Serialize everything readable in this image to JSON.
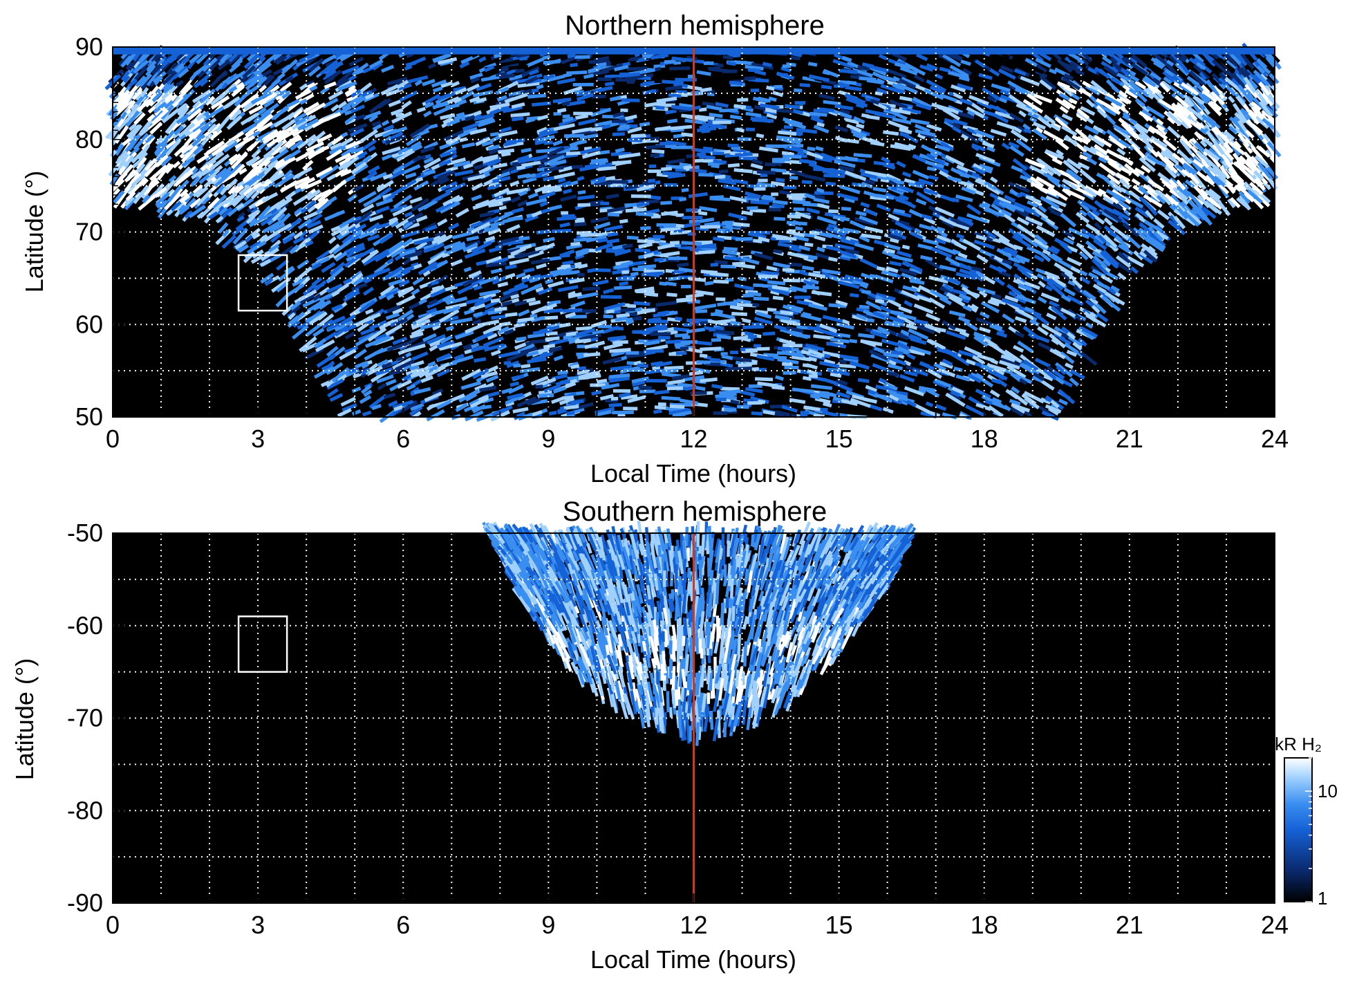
{
  "chart_data": [
    {
      "type": "heatmap",
      "title": "Northern hemisphere",
      "xlabel": "Local Time (hours)",
      "ylabel": "Latitude (°)",
      "xlim": [
        0,
        24
      ],
      "ylim": [
        50,
        90
      ],
      "xticks": [
        0,
        3,
        6,
        9,
        12,
        15,
        18,
        21,
        24
      ],
      "yticks": [
        50,
        60,
        70,
        80,
        90
      ],
      "grid": "dotted white, every 1 h local time and every 5° latitude",
      "reference_line": {
        "local_time": 12,
        "color": "#d03a1c"
      },
      "box": {
        "local_time": [
          2.6,
          3.6
        ],
        "latitude": [
          61.5,
          67.5
        ],
        "color": "#ffffff"
      },
      "coverage": {
        "description": "observed region (no data = black)",
        "lower_boundary": [
          {
            "lt": 0,
            "lat": 73.5
          },
          {
            "lt": 1.0,
            "lat": 72.5
          },
          {
            "lt": 2.0,
            "lat": 70.5
          },
          {
            "lt": 3.0,
            "lat": 66.5
          },
          {
            "lt": 4.0,
            "lat": 58
          },
          {
            "lt": 4.7,
            "lat": 50
          },
          {
            "lt": 19.5,
            "lat": 50
          },
          {
            "lt": 20.2,
            "lat": 57
          },
          {
            "lt": 21.0,
            "lat": 65
          },
          {
            "lt": 22.0,
            "lat": 70.5
          },
          {
            "lt": 23.0,
            "lat": 72.5
          },
          {
            "lt": 24,
            "lat": 73.5
          }
        ],
        "bright_ovals": [
          {
            "lt_center": 3,
            "lat_center": 77,
            "note": "bright arcs dawn side"
          },
          {
            "lt_center": 21,
            "lat_center": 78,
            "note": "bright arcs dusk side"
          }
        ]
      },
      "colors": [
        "#000000",
        "#0a2a6e",
        "#1561d6",
        "#3a8ef0",
        "#9fd0ff",
        "#ffffff"
      ]
    },
    {
      "type": "heatmap",
      "title": "Southern hemisphere",
      "xlabel": "Local Time (hours)",
      "ylabel": "Latitude (°)",
      "xlim": [
        0,
        24
      ],
      "ylim": [
        -90,
        -50
      ],
      "xticks": [
        0,
        3,
        6,
        9,
        12,
        15,
        18,
        21,
        24
      ],
      "yticks": [
        -90,
        -80,
        -70,
        -60,
        -50
      ],
      "grid": "dotted white, every 1 h local time and every 5° latitude",
      "reference_line": {
        "local_time": 12,
        "color": "#d03a1c"
      },
      "box": {
        "local_time": [
          2.6,
          3.6
        ],
        "latitude": [
          -65,
          -59
        ]
      },
      "coverage": {
        "description": "observed region (no data = black)",
        "upper_lt_range": [
          7.8,
          16.4
        ],
        "lower_boundary": [
          {
            "lt": 7.8,
            "lat": -50
          },
          {
            "lt": 8.5,
            "lat": -58
          },
          {
            "lt": 9.5,
            "lat": -65
          },
          {
            "lt": 10.5,
            "lat": -69
          },
          {
            "lt": 11.5,
            "lat": -71.5
          },
          {
            "lt": 12.0,
            "lat": -72
          },
          {
            "lt": 13.0,
            "lat": -71
          },
          {
            "lt": 14.0,
            "lat": -68
          },
          {
            "lt": 15.0,
            "lat": -63
          },
          {
            "lt": 16.0,
            "lat": -56
          },
          {
            "lt": 16.4,
            "lat": -51
          }
        ]
      }
    }
  ],
  "colorbar": {
    "label": "kR H₂",
    "scale": "log",
    "range": [
      1,
      20
    ],
    "ticks": [
      "1",
      "10"
    ],
    "colors": [
      "#000000",
      "#0a2a6e",
      "#1561d6",
      "#3a8ef0",
      "#9fd0ff",
      "#ffffff"
    ]
  }
}
